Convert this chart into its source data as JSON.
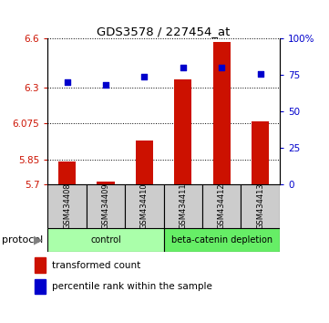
{
  "title": "GDS3578 / 227454_at",
  "samples": [
    "GSM434408",
    "GSM434409",
    "GSM434410",
    "GSM434411",
    "GSM434412",
    "GSM434413"
  ],
  "red_values": [
    5.84,
    5.715,
    5.97,
    6.35,
    6.58,
    6.09
  ],
  "blue_percentile": [
    70,
    68,
    74,
    80,
    80,
    76
  ],
  "ylim_left": [
    5.7,
    6.6
  ],
  "ylim_right": [
    0,
    100
  ],
  "yticks_left": [
    5.7,
    5.85,
    6.075,
    6.3,
    6.6
  ],
  "yticks_right": [
    0,
    25,
    50,
    75,
    100
  ],
  "ytick_labels_left": [
    "5.7",
    "5.85",
    "6.075",
    "6.3",
    "6.6"
  ],
  "ytick_labels_right": [
    "0",
    "25",
    "50",
    "75",
    "100%"
  ],
  "groups": [
    {
      "label": "control",
      "indices": [
        0,
        1,
        2
      ]
    },
    {
      "label": "beta-catenin depletion",
      "indices": [
        3,
        4,
        5
      ]
    }
  ],
  "group_colors": [
    "#aaffaa",
    "#66ee66"
  ],
  "bar_color": "#cc1100",
  "marker_color": "#0000cc",
  "sample_bg": "#cccccc",
  "protocol_label": "protocol",
  "legend_red": "transformed count",
  "legend_blue": "percentile rank within the sample"
}
